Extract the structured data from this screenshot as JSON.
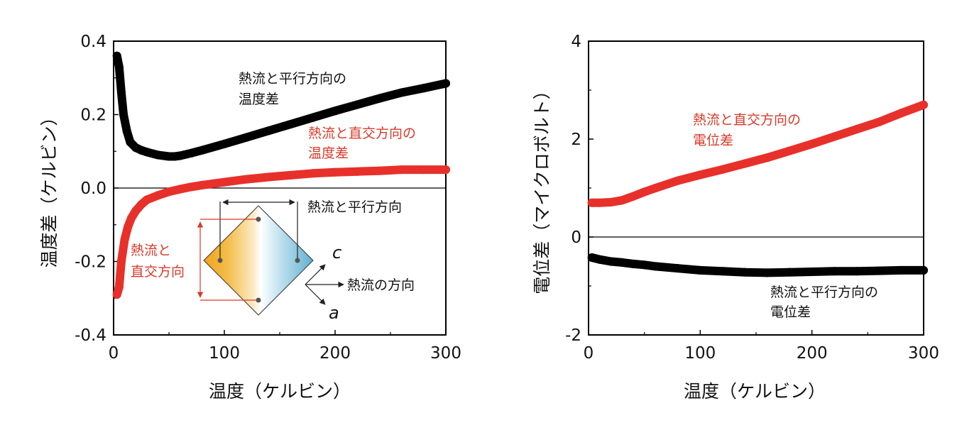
{
  "colors": {
    "black_series": "#000000",
    "red_series": "#e8302b",
    "annotation_red": "#d93a2b",
    "crystal_orange": "#f0a21c",
    "crystal_blue": "#6fb8d6"
  },
  "chart_data": [
    {
      "type": "line",
      "xlabel": "温度（ケルビン）",
      "ylabel": "温度差（ケルビン）",
      "xlim": [
        0,
        300
      ],
      "ylim": [
        -0.4,
        0.4
      ],
      "xticks": [
        "0",
        "100",
        "200",
        "300"
      ],
      "yticks": [
        "-0.4",
        "-0.2",
        "0.0",
        "0.2",
        "0.4"
      ],
      "series": [
        {
          "name": "熱流と平行方向の温度差",
          "color": "black",
          "x": [
            3,
            5,
            7,
            9,
            12,
            15,
            20,
            25,
            30,
            40,
            50,
            55,
            60,
            70,
            80,
            100,
            120,
            140,
            160,
            180,
            200,
            220,
            240,
            260,
            280,
            300
          ],
          "y": [
            0.36,
            0.33,
            0.26,
            0.2,
            0.155,
            0.125,
            0.11,
            0.103,
            0.098,
            0.09,
            0.086,
            0.086,
            0.088,
            0.095,
            0.103,
            0.12,
            0.138,
            0.156,
            0.174,
            0.192,
            0.21,
            0.227,
            0.244,
            0.26,
            0.272,
            0.285
          ]
        },
        {
          "name": "熱流と直交方向の温度差",
          "color": "red",
          "x": [
            3,
            5,
            7,
            10,
            13,
            16,
            20,
            25,
            30,
            40,
            50,
            60,
            70,
            80,
            100,
            120,
            140,
            160,
            180,
            200,
            220,
            240,
            260,
            280,
            300
          ],
          "y": [
            -0.29,
            -0.27,
            -0.2,
            -0.14,
            -0.105,
            -0.082,
            -0.062,
            -0.045,
            -0.032,
            -0.02,
            -0.01,
            -0.003,
            0.003,
            0.008,
            0.016,
            0.024,
            0.03,
            0.035,
            0.04,
            0.043,
            0.045,
            0.047,
            0.05,
            0.05,
            0.05
          ]
        }
      ],
      "annotations": {
        "black_line1": "熱流と平行方向の",
        "black_line2": "温度差",
        "red_line1": "熱流と直交方向の",
        "red_line2": "温度差"
      },
      "inset": {
        "parallel_label": "熱流と平行方向",
        "perp_line1": "熱流と",
        "perp_line2": "直交方向",
        "axis_c": "c",
        "axis_a": "a",
        "flow_label": "熱流の方向"
      }
    },
    {
      "type": "line",
      "xlabel": "温度（ケルビン）",
      "ylabel": "電位差（マイクロボルト）",
      "xlim": [
        0,
        300
      ],
      "ylim": [
        -2,
        4
      ],
      "xticks": [
        "0",
        "100",
        "200",
        "300"
      ],
      "yticks": [
        "-2",
        "0",
        "2",
        "4"
      ],
      "series": [
        {
          "name": "熱流と直交方向の電位差",
          "color": "red",
          "x": [
            3,
            10,
            20,
            30,
            40,
            50,
            60,
            80,
            100,
            120,
            140,
            160,
            180,
            200,
            220,
            240,
            260,
            280,
            300
          ],
          "y": [
            0.7,
            0.7,
            0.71,
            0.75,
            0.83,
            0.92,
            1.0,
            1.15,
            1.27,
            1.38,
            1.5,
            1.62,
            1.76,
            1.9,
            2.05,
            2.2,
            2.35,
            2.53,
            2.7
          ]
        },
        {
          "name": "熱流と平行方向の電位差",
          "color": "black",
          "x": [
            3,
            10,
            20,
            30,
            40,
            50,
            60,
            80,
            100,
            120,
            140,
            160,
            180,
            200,
            220,
            240,
            260,
            280,
            300
          ],
          "y": [
            -0.42,
            -0.46,
            -0.5,
            -0.52,
            -0.55,
            -0.57,
            -0.6,
            -0.64,
            -0.68,
            -0.7,
            -0.72,
            -0.73,
            -0.72,
            -0.71,
            -0.7,
            -0.7,
            -0.69,
            -0.68,
            -0.68
          ]
        }
      ],
      "annotations": {
        "red_line1": "熱流と直交方向の",
        "red_line2": "電位差",
        "black_line1": "熱流と平行方向の",
        "black_line2": "電位差"
      }
    }
  ]
}
